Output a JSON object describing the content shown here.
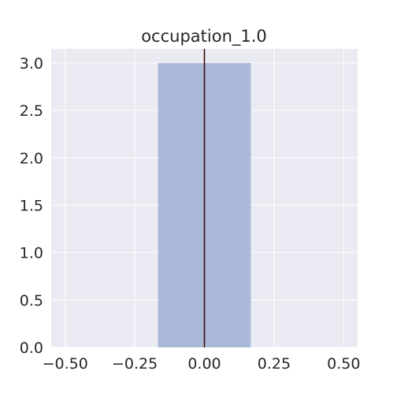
{
  "chart_data": {
    "type": "bar",
    "title": "occupation_1.0",
    "xlabel": "",
    "ylabel": "",
    "xlim": [
      -0.55,
      0.55
    ],
    "ylim": [
      0,
      3.15
    ],
    "x_ticks": [
      -0.5,
      -0.25,
      0.0,
      0.25,
      0.5
    ],
    "x_tick_labels": [
      "−0.50",
      "−0.25",
      "0.00",
      "0.25",
      "0.50"
    ],
    "y_ticks": [
      0,
      0.5,
      1.0,
      1.5,
      2.0,
      2.5,
      3.0
    ],
    "y_tick_labels": [
      "0.0",
      "0.5",
      "1.0",
      "1.5",
      "2.0",
      "2.5",
      "3.0"
    ],
    "bars": [
      {
        "x_start": -0.1667,
        "x_end": 0.1667,
        "value": 3.0
      }
    ],
    "vertical_line": {
      "x": 0.0,
      "color": "#3b0000"
    },
    "grid": true,
    "colors": {
      "background": "#eaeaf2",
      "grid": "#ffffff",
      "bar": "#abb9d8"
    }
  }
}
